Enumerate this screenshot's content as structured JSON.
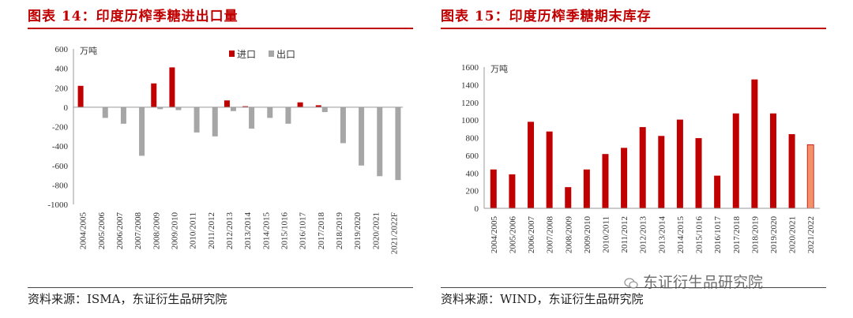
{
  "panels": {
    "left": {
      "title": "图表 14：印度历榨季糖进出口量",
      "source": "资料来源：ISMA，东证衍生品研究院"
    },
    "right": {
      "title": "图表 15：印度历榨季糖期末库存",
      "source": "资料来源：WIND，东证衍生品研究院"
    }
  },
  "watermark": {
    "text": "东证衍生品研究院",
    "icon": "wechat-icon"
  },
  "chart_data": [
    {
      "type": "bar",
      "unit_label": "万吨",
      "categories": [
        "2004/2005",
        "2005/2006",
        "2006/2007",
        "2007/2008",
        "2008/2009",
        "2009/2010",
        "2010/2011",
        "2011/2012",
        "2012/2013",
        "2013/2014",
        "2014/2015",
        "2015/1016",
        "2016/1017",
        "2017/2018",
        "2018/2019",
        "2019/2020",
        "2020/2021",
        "2021/2022F"
      ],
      "series": [
        {
          "name": "进口",
          "color": "#c00000",
          "values": [
            220,
            0,
            0,
            0,
            245,
            410,
            0,
            0,
            70,
            10,
            0,
            0,
            50,
            20,
            0,
            0,
            0,
            0
          ]
        },
        {
          "name": "出口",
          "color": "#a6a6a6",
          "values": [
            0,
            -110,
            -170,
            -500,
            -20,
            -30,
            -260,
            -300,
            -40,
            -220,
            -110,
            -170,
            0,
            -50,
            -370,
            -600,
            -710,
            -750
          ]
        }
      ],
      "ylim": [
        -1000,
        600
      ],
      "yticks": [
        600,
        400,
        200,
        0,
        -200,
        -400,
        -600,
        -800,
        -1000
      ],
      "legend": "top-right"
    },
    {
      "type": "bar",
      "unit_label": "万吨",
      "categories": [
        "2004/2005",
        "2005/2006",
        "2006/2007",
        "2007/2008",
        "2008/2009",
        "2009/2010",
        "2010/2011",
        "2011/2012",
        "2012/2013",
        "2013/2014",
        "2014/2015",
        "2015/1016",
        "2016/1017",
        "2017/2018",
        "2018/2019",
        "2019/2020",
        "2020/2021",
        "2021/2022"
      ],
      "values": [
        440,
        385,
        980,
        870,
        240,
        440,
        615,
        685,
        920,
        820,
        1005,
        795,
        370,
        1075,
        1460,
        1075,
        840,
        720
      ],
      "bar_color": "#c00000",
      "highlight_index": 17,
      "highlight_color": "#f4916b",
      "ylim": [
        0,
        1600
      ],
      "yticks": [
        1600,
        1400,
        1200,
        1000,
        800,
        600,
        400,
        200,
        0
      ]
    }
  ]
}
